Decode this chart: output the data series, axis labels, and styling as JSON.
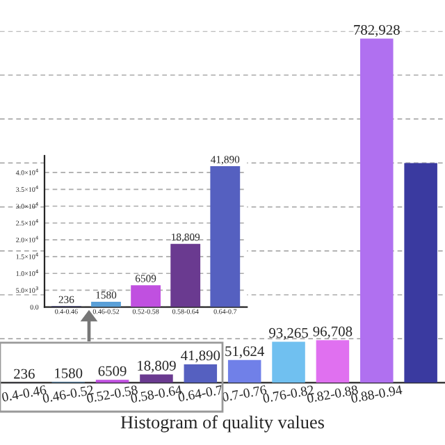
{
  "chart_data": [
    {
      "type": "bar",
      "xlabel": "Histogram of quality values",
      "categories": [
        "0.4-0.46",
        "0.46-0.52",
        "0.52-0.58",
        "0.58-0.64",
        "0.64-0.7",
        "0.7-0.76",
        "0.76-0.82",
        "0.82-0.88",
        "0.88-0.94",
        null
      ],
      "values": [
        236,
        1580,
        6509,
        18809,
        41890,
        51624,
        93265,
        96708,
        782928,
        500000
      ],
      "value_labels": [
        "236",
        "1580",
        "6509",
        "18,809",
        "41,890",
        "51,624",
        "93,265",
        "96,708",
        "782,928",
        null
      ],
      "colors": [
        "#2a2a70",
        "#5aa0d8",
        "#c050e0",
        "#6a3a90",
        "#5560c0",
        "#7080e8",
        "#70c0f0",
        "#e070f0",
        "#b070f0",
        "#3a3aa0"
      ],
      "ylim": [
        0,
        800000
      ],
      "yticks": [
        {
          "value": 100000,
          "label": null
        },
        {
          "value": 200000,
          "label": null
        },
        {
          "value": 300000,
          "label": null
        },
        {
          "value": 400000,
          "label": null
        },
        {
          "value": 500000,
          "label": null
        },
        {
          "value": 600000,
          "label": null
        },
        {
          "value": 700000,
          "label": null
        },
        {
          "value": 800000,
          "label": null
        }
      ],
      "grid": "y",
      "tick_labels": "x"
    },
    {
      "type": "bar",
      "categories": [
        "0.4-0.46",
        "0.46-0.52",
        "0.52-0.58",
        "0.58-0.64",
        "0.64-0.7"
      ],
      "values": [
        236,
        1580,
        6509,
        18809,
        41890
      ],
      "colors": [
        "#2a2a70",
        "#5aa0d8",
        "#c050e0",
        "#6a3a90",
        "#5560c0"
      ],
      "value_labels": [
        "236",
        "1580",
        "6509",
        "18,809",
        "41,890"
      ],
      "ylim": [
        0,
        45000
      ],
      "yticks": [
        {
          "value": 0,
          "label": "0.0"
        },
        {
          "value": 5000,
          "label": "5.0×10$^{3}$"
        },
        {
          "value": 10000,
          "label": "1.0×10$^{4}$"
        },
        {
          "value": 15000,
          "label": "1.5×10$^{4}$"
        },
        {
          "value": 20000,
          "label": "2.0×10$^{4}$"
        },
        {
          "value": 25000,
          "label": "2.5×10$^{4}$"
        },
        {
          "value": 30000,
          "label": "3.0×10$^{4}$"
        },
        {
          "value": 35000,
          "label": "3.5×10$^{4}$"
        },
        {
          "value": 40000,
          "label": "4.0×10$^{4}$"
        }
      ],
      "grid": "y"
    }
  ]
}
